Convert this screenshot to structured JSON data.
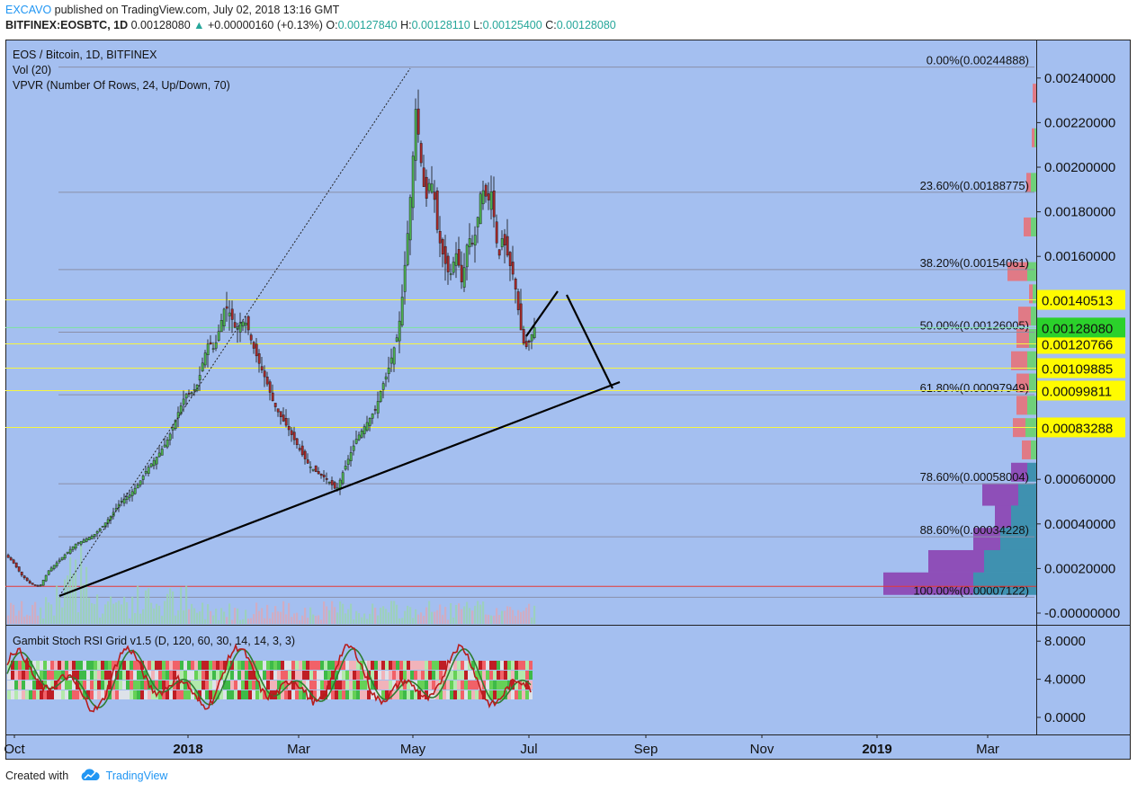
{
  "header": {
    "author": "EXCAVO",
    "published_text": "published on TradingView.com, July 02, 2018 13:16 GMT",
    "symbol": "BITFINEX:EOSBTC, 1D",
    "last": "0.00128080",
    "change": "+0.00000160 (+0.13%)",
    "open_label": "O:",
    "open": "0.00127840",
    "high_label": "H:",
    "high": "0.00128110",
    "low_label": "L:",
    "low": "0.00125400",
    "close_label": "C:",
    "close": "0.00128080"
  },
  "legend": {
    "title": "EOS / Bitcoin, 1D, BITFINEX",
    "vol": "Vol (20)",
    "vpvr": "VPVR (Number Of Rows, 24, Up/Down, 70)",
    "oscillator": "Gambit Stoch RSI Grid v1.5 (D, 120, 60, 30, 14, 14, 3, 3)"
  },
  "footer": {
    "created_with": "Created with",
    "brand": "TradingView"
  },
  "colors": {
    "background": "#a4bff0",
    "up": "#4caf50",
    "down": "#a52a2a",
    "fib_line": "#8a8fa8",
    "hline": "#f5f542",
    "price_tag": "#fffb00",
    "last_tag": "#2bd12b",
    "red_line": "#e53935",
    "vpvr_up": "#3f91b0",
    "vpvr_down": "#8e4fb8",
    "vpvr_up_top": "#6fd07a",
    "vpvr_down_top": "#e07a86"
  },
  "chart_data": {
    "type": "candlestick",
    "title": "EOS / Bitcoin, 1D, BITFINEX",
    "x_ticks": [
      "Oct",
      "2018",
      "Mar",
      "May",
      "Jul",
      "Sep",
      "Nov",
      "2019",
      "Mar"
    ],
    "y_ticks": [
      "0.00240000",
      "0.00220000",
      "0.00200000",
      "0.00180000",
      "0.00160000",
      "0.00140513",
      "0.00128080",
      "0.00120766",
      "0.00109885",
      "0.00099811",
      "0.00083288",
      "0.00060000",
      "0.00040000",
      "0.00020000",
      "-0.00000000"
    ],
    "ylim": [
      0,
      0.00245
    ],
    "price_path": [
      [
        0,
        0.00026
      ],
      [
        8,
        0.00023
      ],
      [
        18,
        0.00017
      ],
      [
        28,
        0.00013
      ],
      [
        38,
        0.00012
      ],
      [
        48,
        0.00019
      ],
      [
        58,
        0.00023
      ],
      [
        68,
        0.00027
      ],
      [
        78,
        0.00031
      ],
      [
        88,
        0.00033
      ],
      [
        98,
        0.00035
      ],
      [
        108,
        0.00039
      ],
      [
        118,
        0.00044
      ],
      [
        128,
        0.0005
      ],
      [
        138,
        0.00053
      ],
      [
        148,
        0.00058
      ],
      [
        158,
        0.00065
      ],
      [
        168,
        0.0007
      ],
      [
        178,
        0.00076
      ],
      [
        185,
        0.00082
      ],
      [
        192,
        0.0009
      ],
      [
        200,
        0.00098
      ],
      [
        208,
        0.00099
      ],
      [
        214,
        0.00103
      ],
      [
        220,
        0.00114
      ],
      [
        226,
        0.00122
      ],
      [
        232,
        0.00118
      ],
      [
        238,
        0.00128
      ],
      [
        244,
        0.00138
      ],
      [
        250,
        0.00134
      ],
      [
        256,
        0.00127
      ],
      [
        262,
        0.00131
      ],
      [
        268,
        0.0013
      ],
      [
        274,
        0.00121
      ],
      [
        282,
        0.00112
      ],
      [
        290,
        0.00104
      ],
      [
        298,
        0.00094
      ],
      [
        306,
        0.00088
      ],
      [
        314,
        0.00083
      ],
      [
        322,
        0.00077
      ],
      [
        330,
        0.00071
      ],
      [
        338,
        0.00066
      ],
      [
        346,
        0.00063
      ],
      [
        354,
        0.00061
      ],
      [
        362,
        0.00058
      ],
      [
        368,
        0.00055
      ],
      [
        374,
        0.00062
      ],
      [
        382,
        0.0007
      ],
      [
        390,
        0.00078
      ],
      [
        398,
        0.00083
      ],
      [
        406,
        0.00088
      ],
      [
        412,
        0.00092
      ],
      [
        418,
        0.00101
      ],
      [
        424,
        0.00107
      ],
      [
        430,
        0.00116
      ],
      [
        436,
        0.00125
      ],
      [
        440,
        0.00137
      ],
      [
        444,
        0.00156
      ],
      [
        448,
        0.00175
      ],
      [
        452,
        0.00198
      ],
      [
        456,
        0.00226
      ],
      [
        460,
        0.00211
      ],
      [
        464,
        0.00193
      ],
      [
        468,
        0.00186
      ],
      [
        472,
        0.00195
      ],
      [
        476,
        0.0019
      ],
      [
        480,
        0.00172
      ],
      [
        484,
        0.00164
      ],
      [
        488,
        0.00158
      ],
      [
        492,
        0.00153
      ],
      [
        496,
        0.00152
      ],
      [
        500,
        0.00163
      ],
      [
        504,
        0.00156
      ],
      [
        508,
        0.00146
      ],
      [
        512,
        0.00164
      ],
      [
        516,
        0.00168
      ],
      [
        520,
        0.00165
      ],
      [
        524,
        0.00174
      ],
      [
        528,
        0.00188
      ],
      [
        532,
        0.0019
      ],
      [
        536,
        0.00184
      ],
      [
        540,
        0.00189
      ],
      [
        544,
        0.00174
      ],
      [
        548,
        0.00158
      ],
      [
        552,
        0.00168
      ],
      [
        556,
        0.00164
      ],
      [
        560,
        0.00157
      ],
      [
        564,
        0.00152
      ],
      [
        568,
        0.00143
      ],
      [
        572,
        0.00129
      ],
      [
        576,
        0.00121
      ],
      [
        580,
        0.00119
      ],
      [
        584,
        0.00124
      ],
      [
        588,
        0.00128
      ]
    ],
    "fib_levels": [
      {
        "label": "0.00%(0.00244888)",
        "value": 0.00244888
      },
      {
        "label": "23.60%(0.00188775)",
        "value": 0.00188775
      },
      {
        "label": "38.20%(0.00154061)",
        "value": 0.00154061
      },
      {
        "label": "50.00%(0.00126005)",
        "value": 0.00126005
      },
      {
        "label": "61.80%(0.00097949)",
        "value": 0.00097949
      },
      {
        "label": "78.60%(0.00058004)",
        "value": 0.00058004
      },
      {
        "label": "88.60%(0.00034228)",
        "value": 0.00034228
      },
      {
        "label": "100.00%(0.00007122)",
        "value": 7.122e-05
      }
    ],
    "horizontal_levels": [
      {
        "label": "0.00140513",
        "value": 0.00140513
      },
      {
        "label": "0.00120766",
        "value": 0.00120766
      },
      {
        "label": "0.00109885",
        "value": 0.00109885
      },
      {
        "label": "0.00099811",
        "value": 0.00099811
      },
      {
        "label": "0.00083288",
        "value": 0.00083288
      }
    ],
    "last_price": {
      "label": "0.00128080",
      "value": 0.0012808
    },
    "red_level": 0.00012,
    "oscillator_ticks": [
      "8.0000",
      "4.0000",
      "0.0000"
    ]
  }
}
